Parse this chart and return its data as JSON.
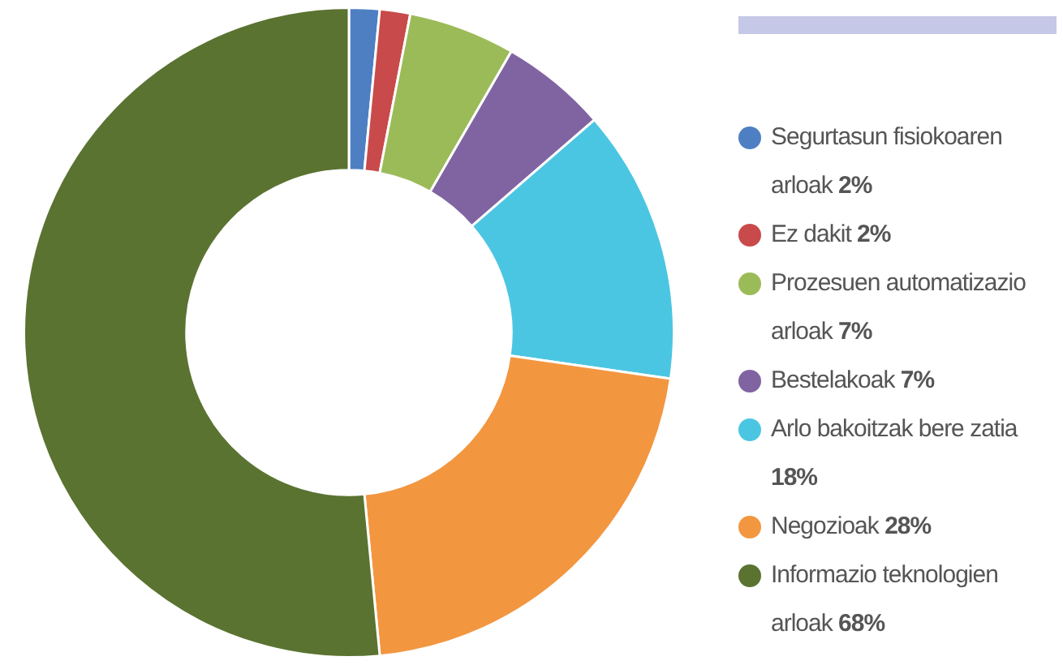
{
  "chart_data": {
    "type": "donut",
    "categories": [
      "Segurtasun fisiokoaren arloak",
      "Ez dakit",
      "Prozesuen automatizazio arloak",
      "Bestelakoak",
      "Arlo bakoitzak bere zatia",
      "Negozioak",
      "Informazio teknologien arloak"
    ],
    "values": [
      2,
      2,
      7,
      7,
      18,
      28,
      68
    ],
    "value_labels": [
      "2%",
      "2%",
      "7%",
      "7%",
      "18%",
      "28%",
      "68%"
    ],
    "colors": [
      "#4e7fc2",
      "#c94a4a",
      "#9bbb59",
      "#8064a2",
      "#4bc6e2",
      "#f39640",
      "#5a7331"
    ],
    "legend": "right"
  }
}
